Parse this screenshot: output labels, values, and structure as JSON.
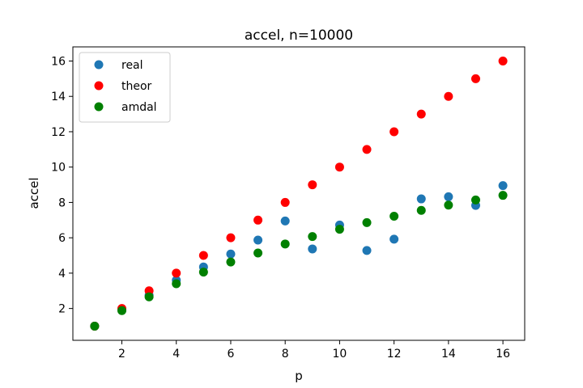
{
  "chart_data": {
    "type": "scatter",
    "title": "accel, n=10000",
    "xlabel": "p",
    "ylabel": "accel",
    "xlim": [
      0.2,
      16.8
    ],
    "ylim": [
      0.2,
      16.8
    ],
    "xticks": [
      2,
      4,
      6,
      8,
      10,
      12,
      14,
      16
    ],
    "yticks": [
      2,
      4,
      6,
      8,
      10,
      12,
      14,
      16
    ],
    "legend_position": "top-left",
    "series": [
      {
        "name": "real",
        "color": "#1f77b4",
        "x": [
          1,
          2,
          3,
          4,
          5,
          6,
          7,
          8,
          9,
          10,
          11,
          12,
          13,
          14,
          15,
          16
        ],
        "y": [
          1.0,
          1.93,
          2.75,
          3.6,
          4.35,
          5.08,
          5.87,
          6.95,
          5.37,
          6.72,
          5.28,
          5.92,
          8.2,
          8.32,
          7.83,
          8.95
        ]
      },
      {
        "name": "theor",
        "color": "#ff0000",
        "x": [
          1,
          2,
          3,
          4,
          5,
          6,
          7,
          8,
          9,
          10,
          11,
          12,
          13,
          14,
          15,
          16
        ],
        "y": [
          1,
          2,
          3,
          4,
          5,
          6,
          7,
          8,
          9,
          10,
          11,
          12,
          13,
          14,
          15,
          16
        ]
      },
      {
        "name": "amdal",
        "color": "#008000",
        "x": [
          1,
          2,
          3,
          4,
          5,
          6,
          7,
          8,
          9,
          10,
          11,
          12,
          13,
          14,
          15,
          16
        ],
        "y": [
          1.0,
          1.88,
          2.66,
          3.4,
          4.06,
          4.63,
          5.14,
          5.65,
          6.07,
          6.48,
          6.86,
          7.22,
          7.55,
          7.85,
          8.14,
          8.4
        ]
      }
    ]
  }
}
